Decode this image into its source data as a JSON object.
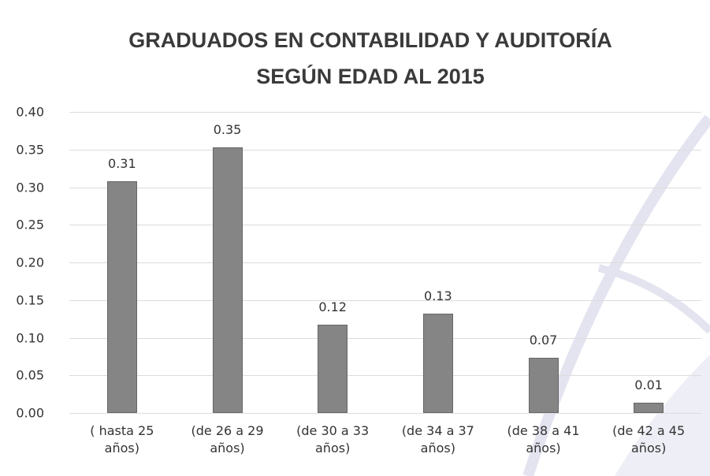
{
  "chart_data": {
    "type": "bar",
    "title": "GRADUADOS EN CONTABILIDAD Y AUDITORÍA SEGÚN EDAD AL 2015",
    "categories": [
      "( hasta 25 años)",
      "(de 26 a 29 años)",
      "(de 30 a 33 años)",
      "(de 34 a 37 años)",
      "(de 38 a 41 años)",
      "(de 42 a 45 años)"
    ],
    "values": [
      0.308,
      0.353,
      0.117,
      0.132,
      0.073,
      0.014
    ],
    "value_labels": [
      "0.31",
      "0.35",
      "0.12",
      "0.13",
      "0.07",
      "0.01"
    ],
    "color": "#858585",
    "ylim": [
      0,
      0.4
    ],
    "yticks": [
      {
        "value": 0,
        "label": "0.00"
      },
      {
        "value": 0.05,
        "label": "0.05"
      },
      {
        "value": 0.1,
        "label": "0.10"
      },
      {
        "value": 0.15,
        "label": "0.15"
      },
      {
        "value": 0.2,
        "label": "0.20"
      },
      {
        "value": 0.25,
        "label": "0.25"
      },
      {
        "value": 0.3,
        "label": "0.30"
      },
      {
        "value": 0.35,
        "label": "0.35"
      },
      {
        "value": 0.4,
        "label": "0.40"
      }
    ],
    "grid": true
  }
}
